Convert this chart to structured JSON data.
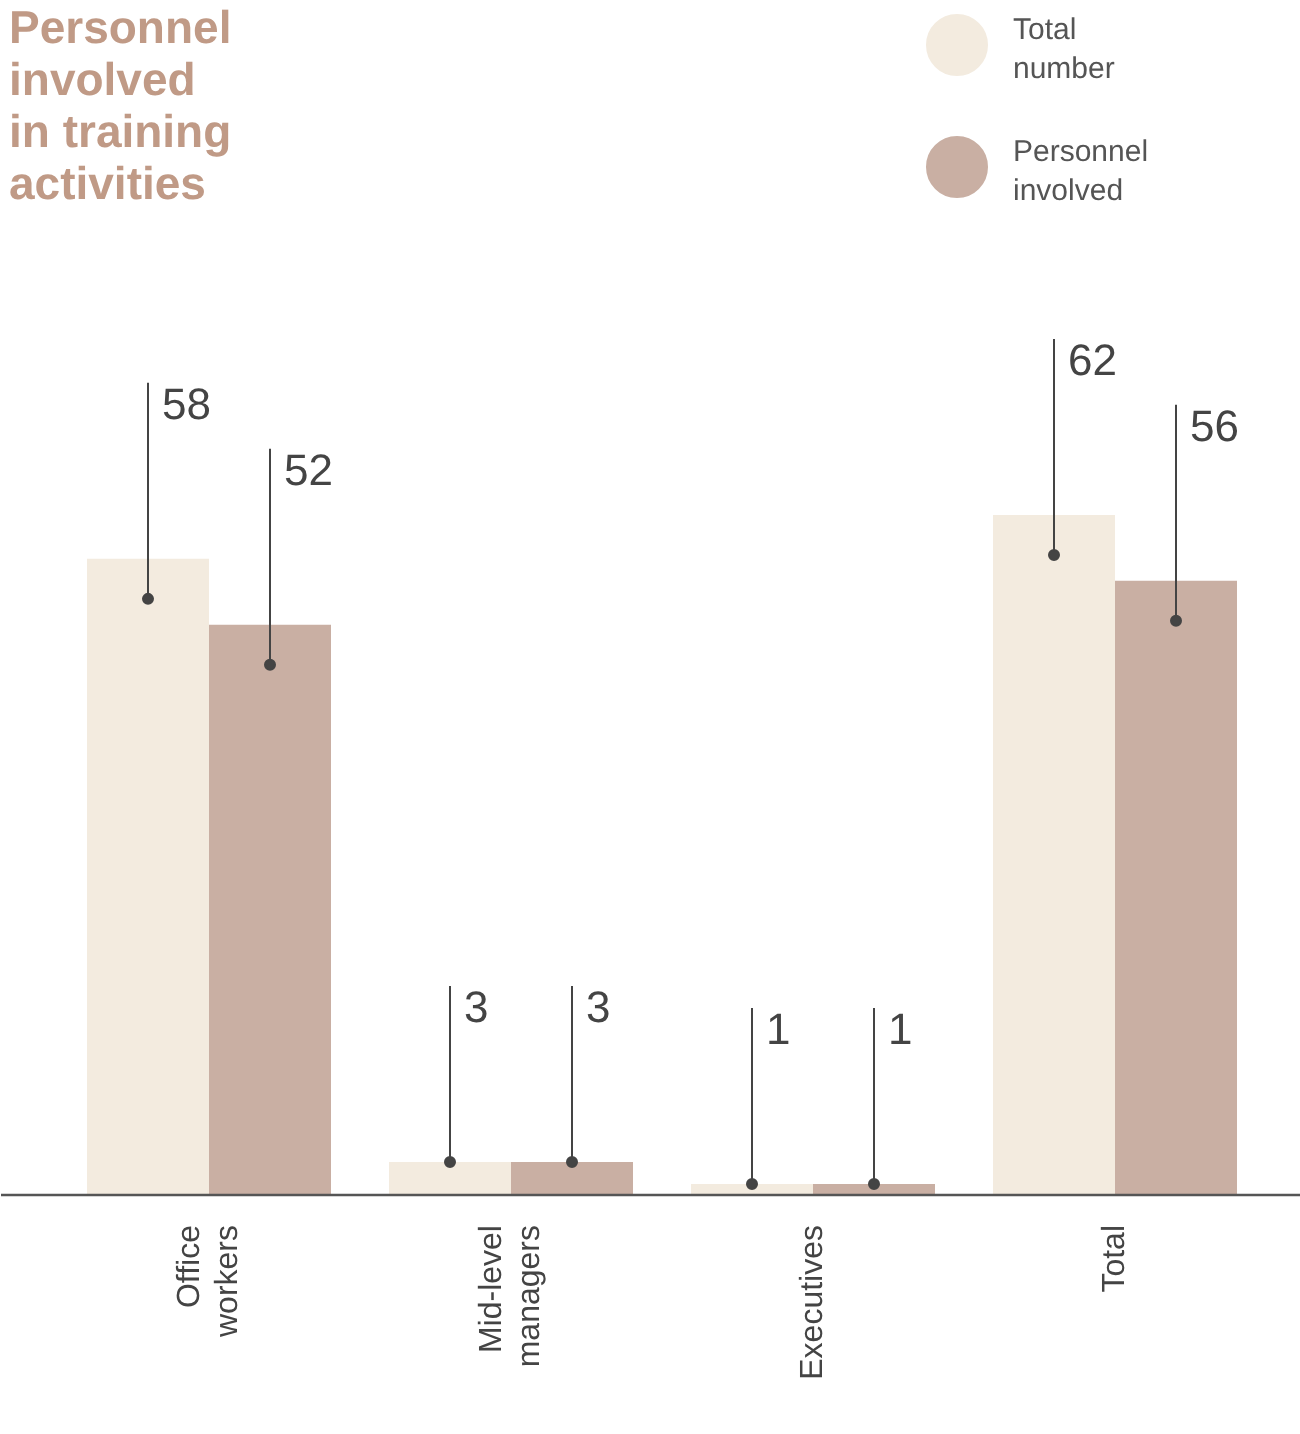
{
  "chart_data": {
    "type": "bar",
    "title": "Personnel involved in training activities",
    "categories": [
      "Office workers",
      "Mid-level managers",
      "Executives",
      "Total"
    ],
    "series": [
      {
        "name": "Total number",
        "color": "#f3ebdf",
        "values": [
          58,
          3,
          1,
          62
        ]
      },
      {
        "name": "Personnel involved",
        "color": "#c9afa3",
        "values": [
          52,
          3,
          1,
          56
        ]
      }
    ],
    "data_labels": true,
    "legend": "top right",
    "grid": false,
    "tick_labels": "x"
  }
}
